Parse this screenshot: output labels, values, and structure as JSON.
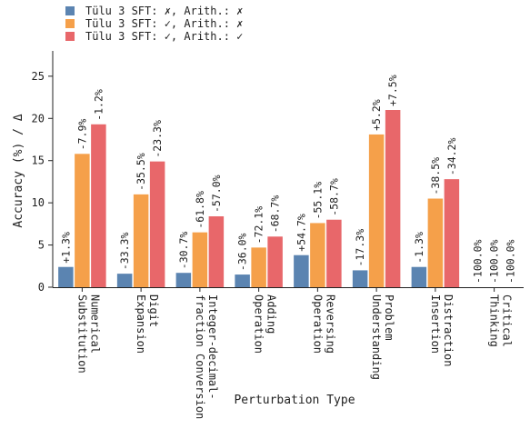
{
  "chart_data": {
    "type": "bar",
    "xlabel": "Perturbation Type",
    "ylabel": "Accuracy (%) / Δ",
    "ylim": [
      0,
      28
    ],
    "yticks": [
      0,
      5,
      10,
      15,
      20,
      25
    ],
    "grid": false,
    "legend_position": "top-left",
    "categories": [
      [
        "Numerical",
        "Substitution"
      ],
      [
        "Digit",
        "Expansion"
      ],
      [
        "Integer-decimal-",
        "fraction Conversion"
      ],
      [
        "Adding",
        "Operation"
      ],
      [
        "Reversing",
        "Operation"
      ],
      [
        "Problem",
        "Understanding"
      ],
      [
        "Distraction",
        "Insertion"
      ],
      [
        "Critical",
        "Thinking"
      ]
    ],
    "series": [
      {
        "name": "Tülu 3 SFT: ✗, Arith.: ✗",
        "color": "#5b84b1",
        "values": [
          2.4,
          1.6,
          1.7,
          1.5,
          3.8,
          2.0,
          2.4,
          0.0
        ],
        "labels": [
          "+1.3%",
          "-33.3%",
          "-30.7%",
          "-36.0%",
          "+54.7%",
          "-17.3%",
          "-1.3%",
          "-100.0%"
        ]
      },
      {
        "name": "Tülu 3 SFT: ✓, Arith.: ✗",
        "color": "#f5a04a",
        "values": [
          15.8,
          11.0,
          6.5,
          4.7,
          7.6,
          18.1,
          10.5,
          0.0
        ],
        "labels": [
          "-7.9%",
          "-35.5%",
          "-61.8%",
          "-72.1%",
          "-55.1%",
          "+5.2%",
          "-38.5%",
          "-100.0%"
        ]
      },
      {
        "name": "Tülu 3 SFT: ✓, Arith.: ✓",
        "color": "#e8676a",
        "values": [
          19.3,
          14.9,
          8.4,
          6.0,
          8.0,
          21.0,
          12.8,
          0.0
        ],
        "labels": [
          "-1.2%",
          "-23.3%",
          "-57.0%",
          "-68.7%",
          "-58.7%",
          "+7.5%",
          "-34.2%",
          "-100.0%"
        ]
      }
    ]
  }
}
